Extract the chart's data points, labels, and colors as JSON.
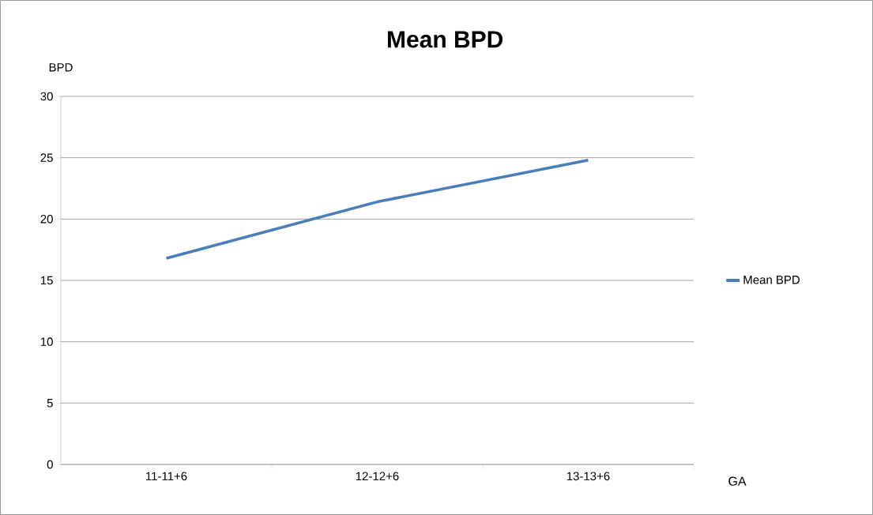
{
  "chart_data": {
    "type": "line",
    "title": "Mean BPD",
    "ylabel": "BPD",
    "xlabel": "GA",
    "categories": [
      "11-11+6",
      "12-12+6",
      "13-13+6"
    ],
    "series": [
      {
        "name": "Mean BPD",
        "color": "#4a7ebb",
        "values": [
          16.8,
          21.4,
          24.8
        ]
      }
    ],
    "ylim": [
      0,
      30
    ],
    "yticks": [
      0,
      5,
      10,
      15,
      20,
      25,
      30
    ],
    "grid": "y",
    "legend": "right",
    "marker": "none",
    "line_style": "solid"
  }
}
